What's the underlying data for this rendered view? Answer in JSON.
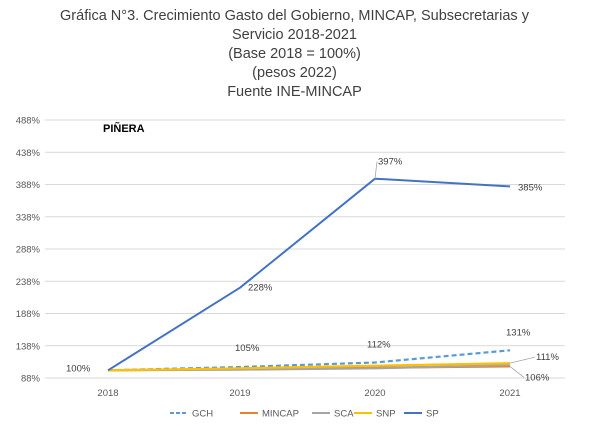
{
  "chart_data": {
    "type": "line",
    "title_lines": [
      "Gráfica N°3. Crecimiento Gasto del Gobierno, MINCAP, Subsecretarias y",
      "Servicio 2018-2021",
      "(Base 2018 = 100%)",
      "(pesos 2022)",
      "Fuente INE-MINCAP"
    ],
    "annotation": "PIÑERA",
    "categories": [
      "2018",
      "2019",
      "2020",
      "2021"
    ],
    "y_ticks": [
      "88%",
      "138%",
      "188%",
      "238%",
      "288%",
      "338%",
      "388%",
      "438%",
      "488%"
    ],
    "ylim": [
      88,
      488
    ],
    "grid": true,
    "legend_position": "bottom",
    "series": [
      {
        "name": "GCH",
        "color": "#5b9bd5",
        "dashed": true,
        "values": [
          100,
          105,
          112,
          131
        ]
      },
      {
        "name": "MINCAP",
        "color": "#ed7d31",
        "dashed": false,
        "values": [
          100,
          102,
          104,
          106
        ]
      },
      {
        "name": "SCA",
        "color": "#a5a5a5",
        "dashed": false,
        "values": [
          100,
          101,
          103,
          108
        ]
      },
      {
        "name": "SNP",
        "color": "#ffc000",
        "dashed": false,
        "values": [
          100,
          103,
          107,
          111
        ]
      },
      {
        "name": "SP",
        "color": "#4472c4",
        "dashed": false,
        "values": [
          100,
          228,
          397,
          385
        ]
      }
    ],
    "data_labels": [
      {
        "series": "SP",
        "index": 0,
        "text": "100%"
      },
      {
        "series": "SP",
        "index": 1,
        "text": "228%"
      },
      {
        "series": "SP",
        "index": 2,
        "text": "397%"
      },
      {
        "series": "SP",
        "index": 3,
        "text": "385%"
      },
      {
        "series": "GCH",
        "index": 1,
        "text": "105%"
      },
      {
        "series": "GCH",
        "index": 2,
        "text": "112%"
      },
      {
        "series": "GCH",
        "index": 3,
        "text": "131%"
      },
      {
        "series": "SNP",
        "index": 3,
        "text": "111%"
      },
      {
        "series": "MINCAP",
        "index": 3,
        "text": "106%"
      }
    ]
  }
}
